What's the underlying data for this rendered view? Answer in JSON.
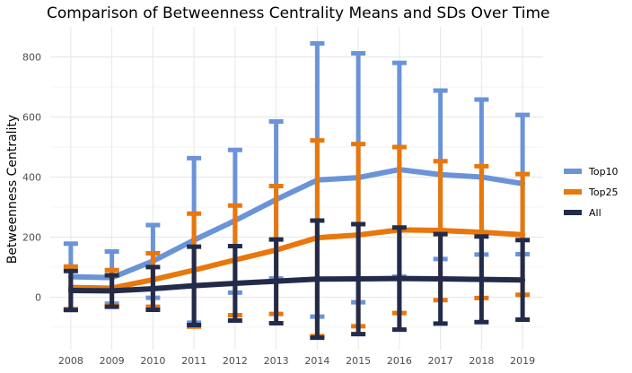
{
  "chart_data": {
    "type": "line",
    "title": "Comparison of Betweenness Centrality Means and SDs Over Time",
    "xlabel": "",
    "ylabel": "Betweenness Centrality",
    "x": [
      2008,
      2009,
      2010,
      2011,
      2012,
      2013,
      2014,
      2015,
      2016,
      2017,
      2018,
      2019
    ],
    "ylim": [
      -175,
      900
    ],
    "yticks": [
      0,
      200,
      400,
      600,
      800
    ],
    "grid": true,
    "legend_position": "right",
    "series": [
      {
        "name": "Top10",
        "color": "#6a93d8",
        "mean": [
          68,
          65,
          120,
          190,
          255,
          325,
          390,
          398,
          425,
          408,
          400,
          378
        ],
        "upper": [
          178,
          152,
          240,
          463,
          490,
          585,
          845,
          812,
          780,
          688,
          658,
          607
        ],
        "lower": [
          -42,
          -22,
          -2,
          -85,
          15,
          62,
          -65,
          -17,
          68,
          127,
          142,
          143
        ]
      },
      {
        "name": "Top25",
        "color": "#e8770c",
        "mean": [
          32,
          30,
          58,
          90,
          124,
          157,
          198,
          207,
          224,
          222,
          216,
          208
        ],
        "upper": [
          102,
          90,
          146,
          278,
          305,
          370,
          522,
          510,
          500,
          453,
          436,
          410
        ],
        "lower": [
          -40,
          -30,
          -32,
          -98,
          -60,
          -56,
          -130,
          -97,
          -53,
          -10,
          -3,
          8
        ]
      },
      {
        "name": "All",
        "color": "#232b4a",
        "mean": [
          22,
          21,
          28,
          38,
          46,
          53,
          60,
          61,
          62,
          61,
          59,
          57
        ],
        "upper": [
          87,
          73,
          100,
          168,
          170,
          192,
          255,
          243,
          232,
          210,
          202,
          190
        ],
        "lower": [
          -43,
          -32,
          -42,
          -93,
          -78,
          -87,
          -135,
          -123,
          -108,
          -88,
          -83,
          -75
        ]
      }
    ]
  }
}
